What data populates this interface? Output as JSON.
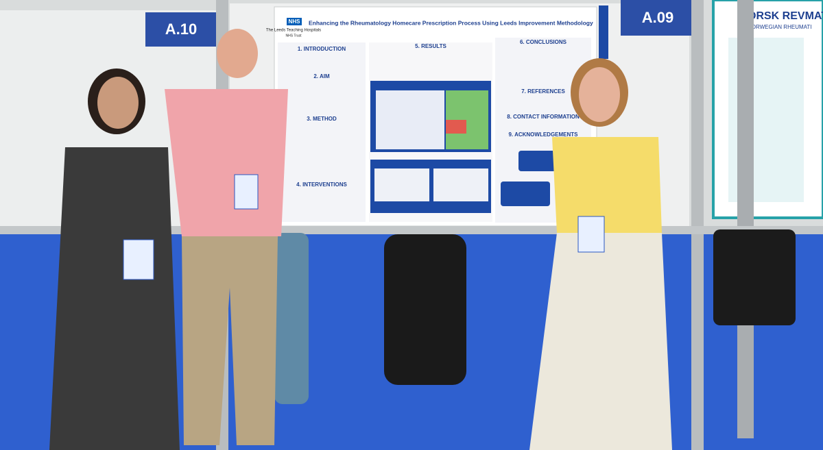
{
  "signs": [
    "A.10",
    "A.09"
  ],
  "poster": {
    "logo": "NHS",
    "trust": "The Leeds Teaching Hospitals",
    "trust_suffix": "NHS Trust",
    "title": "Enhancing the Rheumatology Homecare Prescription Process Using Leeds Improvement Methodology",
    "sections": [
      "1. INTRODUCTION",
      "2. AIM",
      "3. METHOD",
      "4. INTERVENTIONS",
      "5. RESULTS",
      "6. CONCLUSIONS",
      "7. REFERENCES",
      "8. CONTACT INFORMATION",
      "9. ACKNOWLEDGEMENTS"
    ]
  },
  "right_poster": {
    "title": "ORSK REVMAT",
    "subtitle": "NORWEGIAN RHEUMATI"
  }
}
